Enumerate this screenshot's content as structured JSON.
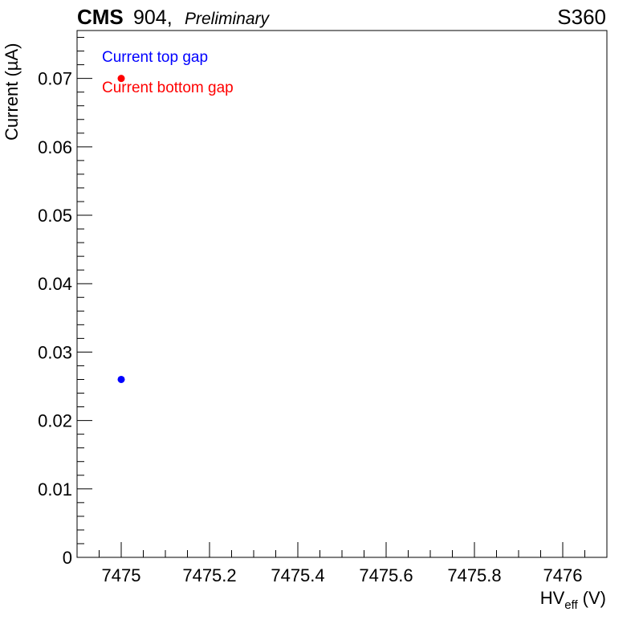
{
  "header": {
    "experiment": "CMS",
    "setup": "904,",
    "status": "Preliminary",
    "chamber": "S360"
  },
  "chart_data": {
    "type": "scatter",
    "xlabel_main": "HV",
    "xlabel_sub": "eff",
    "xlabel_unit": "(V)",
    "ylabel": "Current (µA)",
    "xlim": [
      7474.9,
      7476.1
    ],
    "ylim": [
      0,
      0.077
    ],
    "x_ticks": [
      7475,
      7475.2,
      7475.4,
      7475.6,
      7475.8,
      7476
    ],
    "x_tick_labels": [
      "7475",
      "7475.2",
      "7475.4",
      "7475.6",
      "7475.8",
      "7476"
    ],
    "y_ticks": [
      0,
      0.01,
      0.02,
      0.03,
      0.04,
      0.05,
      0.06,
      0.07
    ],
    "y_tick_labels": [
      "0",
      "0.01",
      "0.02",
      "0.03",
      "0.04",
      "0.05",
      "0.06",
      "0.07"
    ],
    "grid": false,
    "legend_position": "top-left",
    "series": [
      {
        "name": "Current top gap",
        "color": "#0000ff",
        "x": [
          7475
        ],
        "y": [
          0.026
        ]
      },
      {
        "name": "Current bottom gap",
        "color": "#ff0000",
        "x": [
          7475
        ],
        "y": [
          0.07
        ]
      }
    ]
  }
}
